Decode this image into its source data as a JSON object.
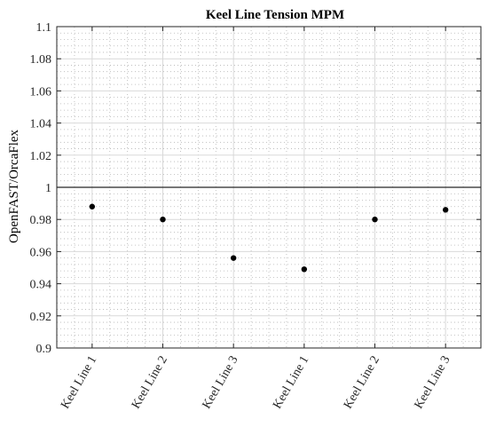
{
  "chart_data": {
    "type": "scatter",
    "title": "Keel Line Tension MPM",
    "xlabel": "",
    "ylabel": "OpenFAST/OrcaFlex",
    "categories": [
      "Keel Line 1",
      "Keel Line 2",
      "Keel Line 3",
      "Keel Line 1",
      "Keel Line 2",
      "Keel Line 3"
    ],
    "values": [
      0.988,
      0.98,
      0.956,
      0.949,
      0.98,
      0.986
    ],
    "ylim": [
      0.9,
      1.1
    ],
    "yticks": [
      0.9,
      0.92,
      0.94,
      0.96,
      0.98,
      1,
      1.02,
      1.04,
      1.06,
      1.08,
      1.1
    ],
    "ytick_labels": [
      "0.9",
      "0.92",
      "0.94",
      "0.96",
      "0.98",
      "1",
      "1.02",
      "1.04",
      "1.06",
      "1.08",
      "1.1"
    ],
    "reference_line": 1,
    "grid": "major and minor",
    "marker_color": "#000000"
  }
}
